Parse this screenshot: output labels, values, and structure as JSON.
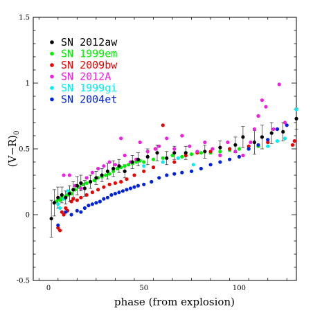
{
  "chart_data": {
    "type": "scatter",
    "title": "",
    "xlabel": "phase (from explosion)",
    "ylabel": "(V−R)",
    "ylabel_subscript": "0",
    "xlim": [
      -8,
      130
    ],
    "ylim": [
      -0.5,
      1.5
    ],
    "x_ticks": [
      0,
      50,
      100
    ],
    "x_tick_labels": [
      "0",
      "50",
      "100"
    ],
    "y_ticks": [
      -0.5,
      0,
      0.5,
      1,
      1.5
    ],
    "y_tick_labels": [
      "-0.5",
      "0",
      "0.5",
      "1",
      "1.5"
    ],
    "grid": false,
    "legend_position": "top-left",
    "series": [
      {
        "name": "SN 2012aw",
        "color": "#000000",
        "has_error_bars": true,
        "points": [
          {
            "x": 1.5,
            "y": -0.03,
            "err": 0.14
          },
          {
            "x": 3,
            "y": 0.09,
            "err": 0.1
          },
          {
            "x": 5,
            "y": 0.13,
            "err": 0.08
          },
          {
            "x": 7,
            "y": 0.15,
            "err": 0.06
          },
          {
            "x": 9,
            "y": 0.13,
            "err": 0.05
          },
          {
            "x": 11,
            "y": 0.16,
            "err": 0.06
          },
          {
            "x": 13,
            "y": 0.19,
            "err": 0.06
          },
          {
            "x": 15,
            "y": 0.22,
            "err": 0.07
          },
          {
            "x": 17,
            "y": 0.24,
            "err": 0.06
          },
          {
            "x": 19,
            "y": 0.2,
            "err": 0.06
          },
          {
            "x": 22,
            "y": 0.25,
            "err": 0.05
          },
          {
            "x": 25,
            "y": 0.28,
            "err": 0.05
          },
          {
            "x": 28,
            "y": 0.3,
            "err": 0.05
          },
          {
            "x": 31,
            "y": 0.33,
            "err": 0.06
          },
          {
            "x": 34,
            "y": 0.35,
            "err": 0.06
          },
          {
            "x": 37,
            "y": 0.37,
            "err": 0.05
          },
          {
            "x": 40,
            "y": 0.33,
            "err": 0.05
          },
          {
            "x": 44,
            "y": 0.4,
            "err": 0.05
          },
          {
            "x": 47,
            "y": 0.42,
            "err": 0.05
          },
          {
            "x": 52,
            "y": 0.44,
            "err": 0.06
          },
          {
            "x": 57,
            "y": 0.47,
            "err": 0.06
          },
          {
            "x": 62,
            "y": 0.43,
            "err": 0.05
          },
          {
            "x": 66,
            "y": 0.47,
            "err": 0.05
          },
          {
            "x": 72,
            "y": 0.47,
            "err": 0.05
          },
          {
            "x": 82,
            "y": 0.48,
            "err": 0.05
          },
          {
            "x": 90,
            "y": 0.51,
            "err": 0.05
          },
          {
            "x": 98,
            "y": 0.53,
            "err": 0.06
          },
          {
            "x": 102,
            "y": 0.59,
            "err": 0.08
          },
          {
            "x": 108,
            "y": 0.55,
            "err": 0.09
          },
          {
            "x": 112,
            "y": 0.59,
            "err": 0.09
          },
          {
            "x": 117,
            "y": 0.62,
            "err": 0.08
          },
          {
            "x": 123,
            "y": 0.63,
            "err": 0.07
          },
          {
            "x": 130,
            "y": 0.73,
            "err": 0.08
          }
        ]
      },
      {
        "name": "SN 1999em",
        "color": "#00ee00",
        "has_error_bars": false,
        "points": [
          {
            "x": 4,
            "y": 0.1
          },
          {
            "x": 5,
            "y": 0.12
          },
          {
            "x": 6,
            "y": 0.11
          },
          {
            "x": 7,
            "y": 0.13
          },
          {
            "x": 8,
            "y": 0.12
          },
          {
            "x": 9,
            "y": 0.14
          },
          {
            "x": 10,
            "y": 0.15
          },
          {
            "x": 11,
            "y": 0.17
          },
          {
            "x": 12,
            "y": 0.16
          },
          {
            "x": 14,
            "y": 0.19
          },
          {
            "x": 16,
            "y": 0.21
          },
          {
            "x": 18,
            "y": 0.23
          },
          {
            "x": 20,
            "y": 0.24
          },
          {
            "x": 22,
            "y": 0.25
          },
          {
            "x": 24,
            "y": 0.26
          },
          {
            "x": 26,
            "y": 0.28
          },
          {
            "x": 28,
            "y": 0.29
          },
          {
            "x": 30,
            "y": 0.3
          },
          {
            "x": 32,
            "y": 0.31
          },
          {
            "x": 34,
            "y": 0.33
          },
          {
            "x": 36,
            "y": 0.35
          },
          {
            "x": 38,
            "y": 0.36
          },
          {
            "x": 40,
            "y": 0.37
          },
          {
            "x": 42,
            "y": 0.38
          },
          {
            "x": 44,
            "y": 0.39
          },
          {
            "x": 46,
            "y": 0.4
          },
          {
            "x": 48,
            "y": 0.41
          },
          {
            "x": 50,
            "y": 0.4
          },
          {
            "x": 55,
            "y": 0.42
          },
          {
            "x": 60,
            "y": 0.43
          },
          {
            "x": 65,
            "y": 0.45
          },
          {
            "x": 70,
            "y": 0.44
          },
          {
            "x": 75,
            "y": 0.46
          },
          {
            "x": 80,
            "y": 0.47
          },
          {
            "x": 85,
            "y": 0.47
          },
          {
            "x": 90,
            "y": 0.48
          },
          {
            "x": 95,
            "y": 0.49
          },
          {
            "x": 100,
            "y": 0.5
          },
          {
            "x": 105,
            "y": 0.5
          },
          {
            "x": 110,
            "y": 0.52
          }
        ]
      },
      {
        "name": "SN 2009bw",
        "color": "#ee0000",
        "has_error_bars": false,
        "points": [
          {
            "x": 5,
            "y": -0.1
          },
          {
            "x": 6,
            "y": -0.12
          },
          {
            "x": 7,
            "y": 0.02
          },
          {
            "x": 8,
            "y": 0.0
          },
          {
            "x": 9,
            "y": 0.05
          },
          {
            "x": 10,
            "y": 0.03
          },
          {
            "x": 12,
            "y": 0.1
          },
          {
            "x": 13,
            "y": 0.12
          },
          {
            "x": 15,
            "y": 0.11
          },
          {
            "x": 17,
            "y": 0.13
          },
          {
            "x": 20,
            "y": 0.15
          },
          {
            "x": 23,
            "y": 0.17
          },
          {
            "x": 26,
            "y": 0.19
          },
          {
            "x": 29,
            "y": 0.21
          },
          {
            "x": 32,
            "y": 0.23
          },
          {
            "x": 35,
            "y": 0.24
          },
          {
            "x": 38,
            "y": 0.25
          },
          {
            "x": 41,
            "y": 0.27
          },
          {
            "x": 45,
            "y": 0.3
          },
          {
            "x": 50,
            "y": 0.33
          },
          {
            "x": 55,
            "y": 0.36
          },
          {
            "x": 60,
            "y": 0.68
          },
          {
            "x": 66,
            "y": 0.4
          },
          {
            "x": 72,
            "y": 0.45
          },
          {
            "x": 78,
            "y": 0.47
          },
          {
            "x": 85,
            "y": 0.48
          },
          {
            "x": 95,
            "y": 0.5
          },
          {
            "x": 105,
            "y": 0.52
          },
          {
            "x": 115,
            "y": 0.55
          },
          {
            "x": 128,
            "y": 0.53
          },
          {
            "x": 129,
            "y": 0.56
          }
        ]
      },
      {
        "name": "SN 2012A",
        "color": "#ee22dd",
        "has_error_bars": false,
        "points": [
          {
            "x": 8,
            "y": 0.3
          },
          {
            "x": 11,
            "y": 0.3
          },
          {
            "x": 14,
            "y": 0.22
          },
          {
            "x": 17,
            "y": 0.2
          },
          {
            "x": 20,
            "y": 0.28
          },
          {
            "x": 23,
            "y": 0.32
          },
          {
            "x": 26,
            "y": 0.35
          },
          {
            "x": 29,
            "y": 0.37
          },
          {
            "x": 32,
            "y": 0.4
          },
          {
            "x": 35,
            "y": 0.38
          },
          {
            "x": 38,
            "y": 0.58
          },
          {
            "x": 40,
            "y": 0.45
          },
          {
            "x": 43,
            "y": 0.4
          },
          {
            "x": 46,
            "y": 0.42
          },
          {
            "x": 48,
            "y": 0.55
          },
          {
            "x": 52,
            "y": 0.48
          },
          {
            "x": 56,
            "y": 0.5
          },
          {
            "x": 58,
            "y": 0.52
          },
          {
            "x": 62,
            "y": 0.58
          },
          {
            "x": 66,
            "y": 0.5
          },
          {
            "x": 70,
            "y": 0.6
          },
          {
            "x": 74,
            "y": 0.52
          },
          {
            "x": 78,
            "y": 0.48
          },
          {
            "x": 82,
            "y": 0.55
          },
          {
            "x": 86,
            "y": 0.5
          },
          {
            "x": 90,
            "y": 0.45
          },
          {
            "x": 94,
            "y": 0.55
          },
          {
            "x": 98,
            "y": 0.48
          },
          {
            "x": 102,
            "y": 0.45
          },
          {
            "x": 106,
            "y": 0.55
          },
          {
            "x": 108,
            "y": 0.65
          },
          {
            "x": 110,
            "y": 0.75
          },
          {
            "x": 112,
            "y": 0.87
          },
          {
            "x": 114,
            "y": 0.82
          },
          {
            "x": 118,
            "y": 0.65
          },
          {
            "x": 121,
            "y": 0.99
          },
          {
            "x": 124,
            "y": 0.7
          }
        ]
      },
      {
        "name": "SN 1999gi",
        "color": "#00eeee",
        "has_error_bars": false,
        "points": [
          {
            "x": 5,
            "y": 0.08
          },
          {
            "x": 6,
            "y": 0.05
          },
          {
            "x": 8,
            "y": 0.12
          },
          {
            "x": 10,
            "y": 0.18
          },
          {
            "x": 50,
            "y": 0.37
          },
          {
            "x": 60,
            "y": 0.4
          },
          {
            "x": 68,
            "y": 0.43
          },
          {
            "x": 76,
            "y": 0.38
          },
          {
            "x": 105,
            "y": 0.5
          },
          {
            "x": 115,
            "y": 0.52
          },
          {
            "x": 120,
            "y": 0.56
          },
          {
            "x": 124,
            "y": 0.58
          },
          {
            "x": 130,
            "y": 0.8
          }
        ]
      },
      {
        "name": "SN 2004et",
        "color": "#0022dd",
        "has_error_bars": false,
        "points": [
          {
            "x": 5,
            "y": -0.08
          },
          {
            "x": 9,
            "y": 0.02
          },
          {
            "x": 12,
            "y": 0.0
          },
          {
            "x": 15,
            "y": 0.03
          },
          {
            "x": 17,
            "y": 0.02
          },
          {
            "x": 19,
            "y": 0.05
          },
          {
            "x": 21,
            "y": 0.07
          },
          {
            "x": 23,
            "y": 0.08
          },
          {
            "x": 25,
            "y": 0.09
          },
          {
            "x": 27,
            "y": 0.1
          },
          {
            "x": 29,
            "y": 0.12
          },
          {
            "x": 31,
            "y": 0.13
          },
          {
            "x": 33,
            "y": 0.15
          },
          {
            "x": 35,
            "y": 0.16
          },
          {
            "x": 37,
            "y": 0.17
          },
          {
            "x": 39,
            "y": 0.18
          },
          {
            "x": 41,
            "y": 0.19
          },
          {
            "x": 43,
            "y": 0.2
          },
          {
            "x": 45,
            "y": 0.21
          },
          {
            "x": 47,
            "y": 0.22
          },
          {
            "x": 50,
            "y": 0.23
          },
          {
            "x": 54,
            "y": 0.25
          },
          {
            "x": 58,
            "y": 0.28
          },
          {
            "x": 62,
            "y": 0.3
          },
          {
            "x": 66,
            "y": 0.31
          },
          {
            "x": 70,
            "y": 0.32
          },
          {
            "x": 75,
            "y": 0.33
          },
          {
            "x": 80,
            "y": 0.35
          },
          {
            "x": 85,
            "y": 0.38
          },
          {
            "x": 90,
            "y": 0.4
          },
          {
            "x": 95,
            "y": 0.42
          },
          {
            "x": 100,
            "y": 0.44
          },
          {
            "x": 105,
            "y": 0.5
          },
          {
            "x": 110,
            "y": 0.53
          },
          {
            "x": 115,
            "y": 0.57
          },
          {
            "x": 120,
            "y": 0.65
          },
          {
            "x": 125,
            "y": 0.68
          }
        ]
      }
    ]
  }
}
